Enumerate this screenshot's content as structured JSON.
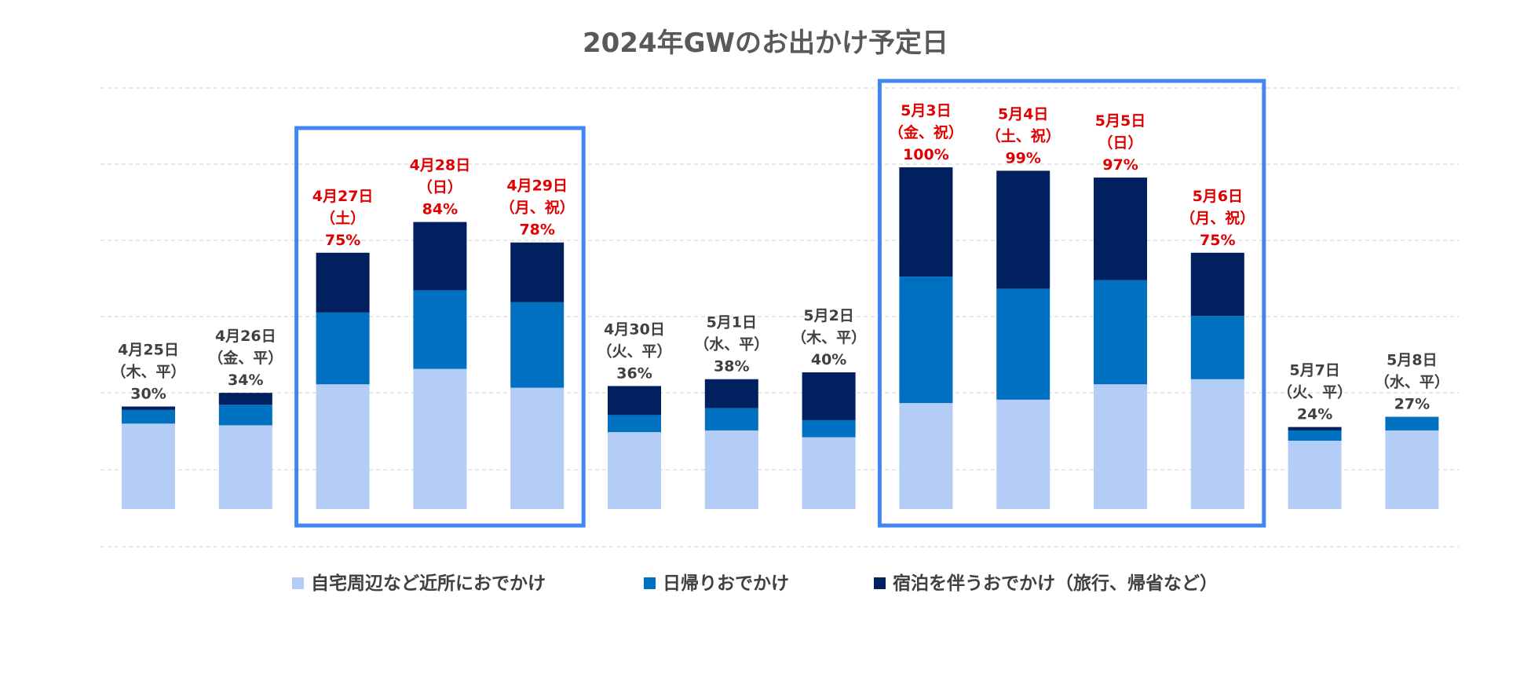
{
  "chart_data": {
    "type": "bar",
    "stacked": true,
    "title": "2024年GWのお出かけ予定日",
    "xlabel": "",
    "ylabel": "",
    "ylim": [
      0,
      100
    ],
    "categories": [
      {
        "date": "4月25日",
        "day": "（木、平）",
        "total": "30%",
        "highlight": false
      },
      {
        "date": "4月26日",
        "day": "（金、平）",
        "total": "34%",
        "highlight": false
      },
      {
        "date": "4月27日",
        "day": "（土）",
        "total": "75%",
        "highlight": true
      },
      {
        "date": "4月28日",
        "day": "（日）",
        "total": "84%",
        "highlight": true
      },
      {
        "date": "4月29日",
        "day": "（月、祝）",
        "total": "78%",
        "highlight": true
      },
      {
        "date": "4月30日",
        "day": "（火、平）",
        "total": "36%",
        "highlight": false
      },
      {
        "date": "5月1日",
        "day": "（水、平）",
        "total": "38%",
        "highlight": false
      },
      {
        "date": "5月2日",
        "day": "（木、平）",
        "total": "40%",
        "highlight": false
      },
      {
        "date": "5月3日",
        "day": "（金、祝）",
        "total": "100%",
        "highlight": true
      },
      {
        "date": "5月4日",
        "day": "（土、祝）",
        "total": "99%",
        "highlight": true
      },
      {
        "date": "5月5日",
        "day": "（日）",
        "total": "97%",
        "highlight": true
      },
      {
        "date": "5月6日",
        "day": "（月、祝）",
        "total": "75%",
        "highlight": true
      },
      {
        "date": "5月7日",
        "day": "（火、平）",
        "total": "24%",
        "highlight": false
      },
      {
        "date": "5月8日",
        "day": "（水、平）",
        "total": "27%",
        "highlight": false
      }
    ],
    "series": [
      {
        "name": "自宅周辺など近所におでかけ",
        "color": "#b4cdf7",
        "values": [
          25,
          24.5,
          36.5,
          41,
          35.5,
          22.5,
          23,
          21,
          31,
          32,
          36.5,
          38,
          20,
          23
        ]
      },
      {
        "name": "日帰りおでかけ",
        "color": "#0070c0",
        "values": [
          4,
          6,
          21,
          23,
          25,
          5,
          6.5,
          5,
          37,
          32.5,
          30.5,
          18.5,
          3,
          4
        ]
      },
      {
        "name": "宿泊を伴うおでかけ（旅行、帰省など）",
        "color": "#002060",
        "values": [
          1,
          3.5,
          17.5,
          20,
          17.5,
          8.5,
          8.5,
          14,
          32,
          34.5,
          30,
          18.5,
          1,
          0
        ]
      }
    ],
    "label_colors": {
      "normal": "#404040",
      "highlight": "#e00000"
    },
    "box_color": "#4285f4",
    "grid": true,
    "grid_color": "#d9d9d9",
    "legend_position": "bottom"
  }
}
